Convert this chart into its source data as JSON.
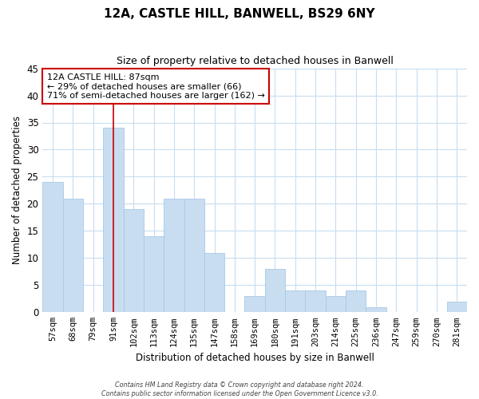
{
  "title": "12A, CASTLE HILL, BANWELL, BS29 6NY",
  "subtitle": "Size of property relative to detached houses in Banwell",
  "xlabel": "Distribution of detached houses by size in Banwell",
  "ylabel": "Number of detached properties",
  "bar_labels": [
    "57sqm",
    "68sqm",
    "79sqm",
    "91sqm",
    "102sqm",
    "113sqm",
    "124sqm",
    "135sqm",
    "147sqm",
    "158sqm",
    "169sqm",
    "180sqm",
    "191sqm",
    "203sqm",
    "214sqm",
    "225sqm",
    "236sqm",
    "247sqm",
    "259sqm",
    "270sqm",
    "281sqm"
  ],
  "bar_values": [
    24,
    21,
    0,
    34,
    19,
    14,
    21,
    21,
    11,
    0,
    3,
    8,
    4,
    4,
    3,
    4,
    1,
    0,
    0,
    0,
    2
  ],
  "bar_color": "#c8ddf0",
  "bar_edge_color": "#a8c8e8",
  "vline_color": "#cc0000",
  "ylim": [
    0,
    45
  ],
  "yticks": [
    0,
    5,
    10,
    15,
    20,
    25,
    30,
    35,
    40,
    45
  ],
  "annotation_title": "12A CASTLE HILL: 87sqm",
  "annotation_line1": "← 29% of detached houses are smaller (66)",
  "annotation_line2": "71% of semi-detached houses are larger (162) →",
  "annotation_box_color": "#ffffff",
  "annotation_box_edge": "#cc0000",
  "footer_line1": "Contains HM Land Registry data © Crown copyright and database right 2024.",
  "footer_line2": "Contains public sector information licensed under the Open Government Licence v3.0.",
  "background_color": "#ffffff",
  "grid_color": "#c8ddf0"
}
